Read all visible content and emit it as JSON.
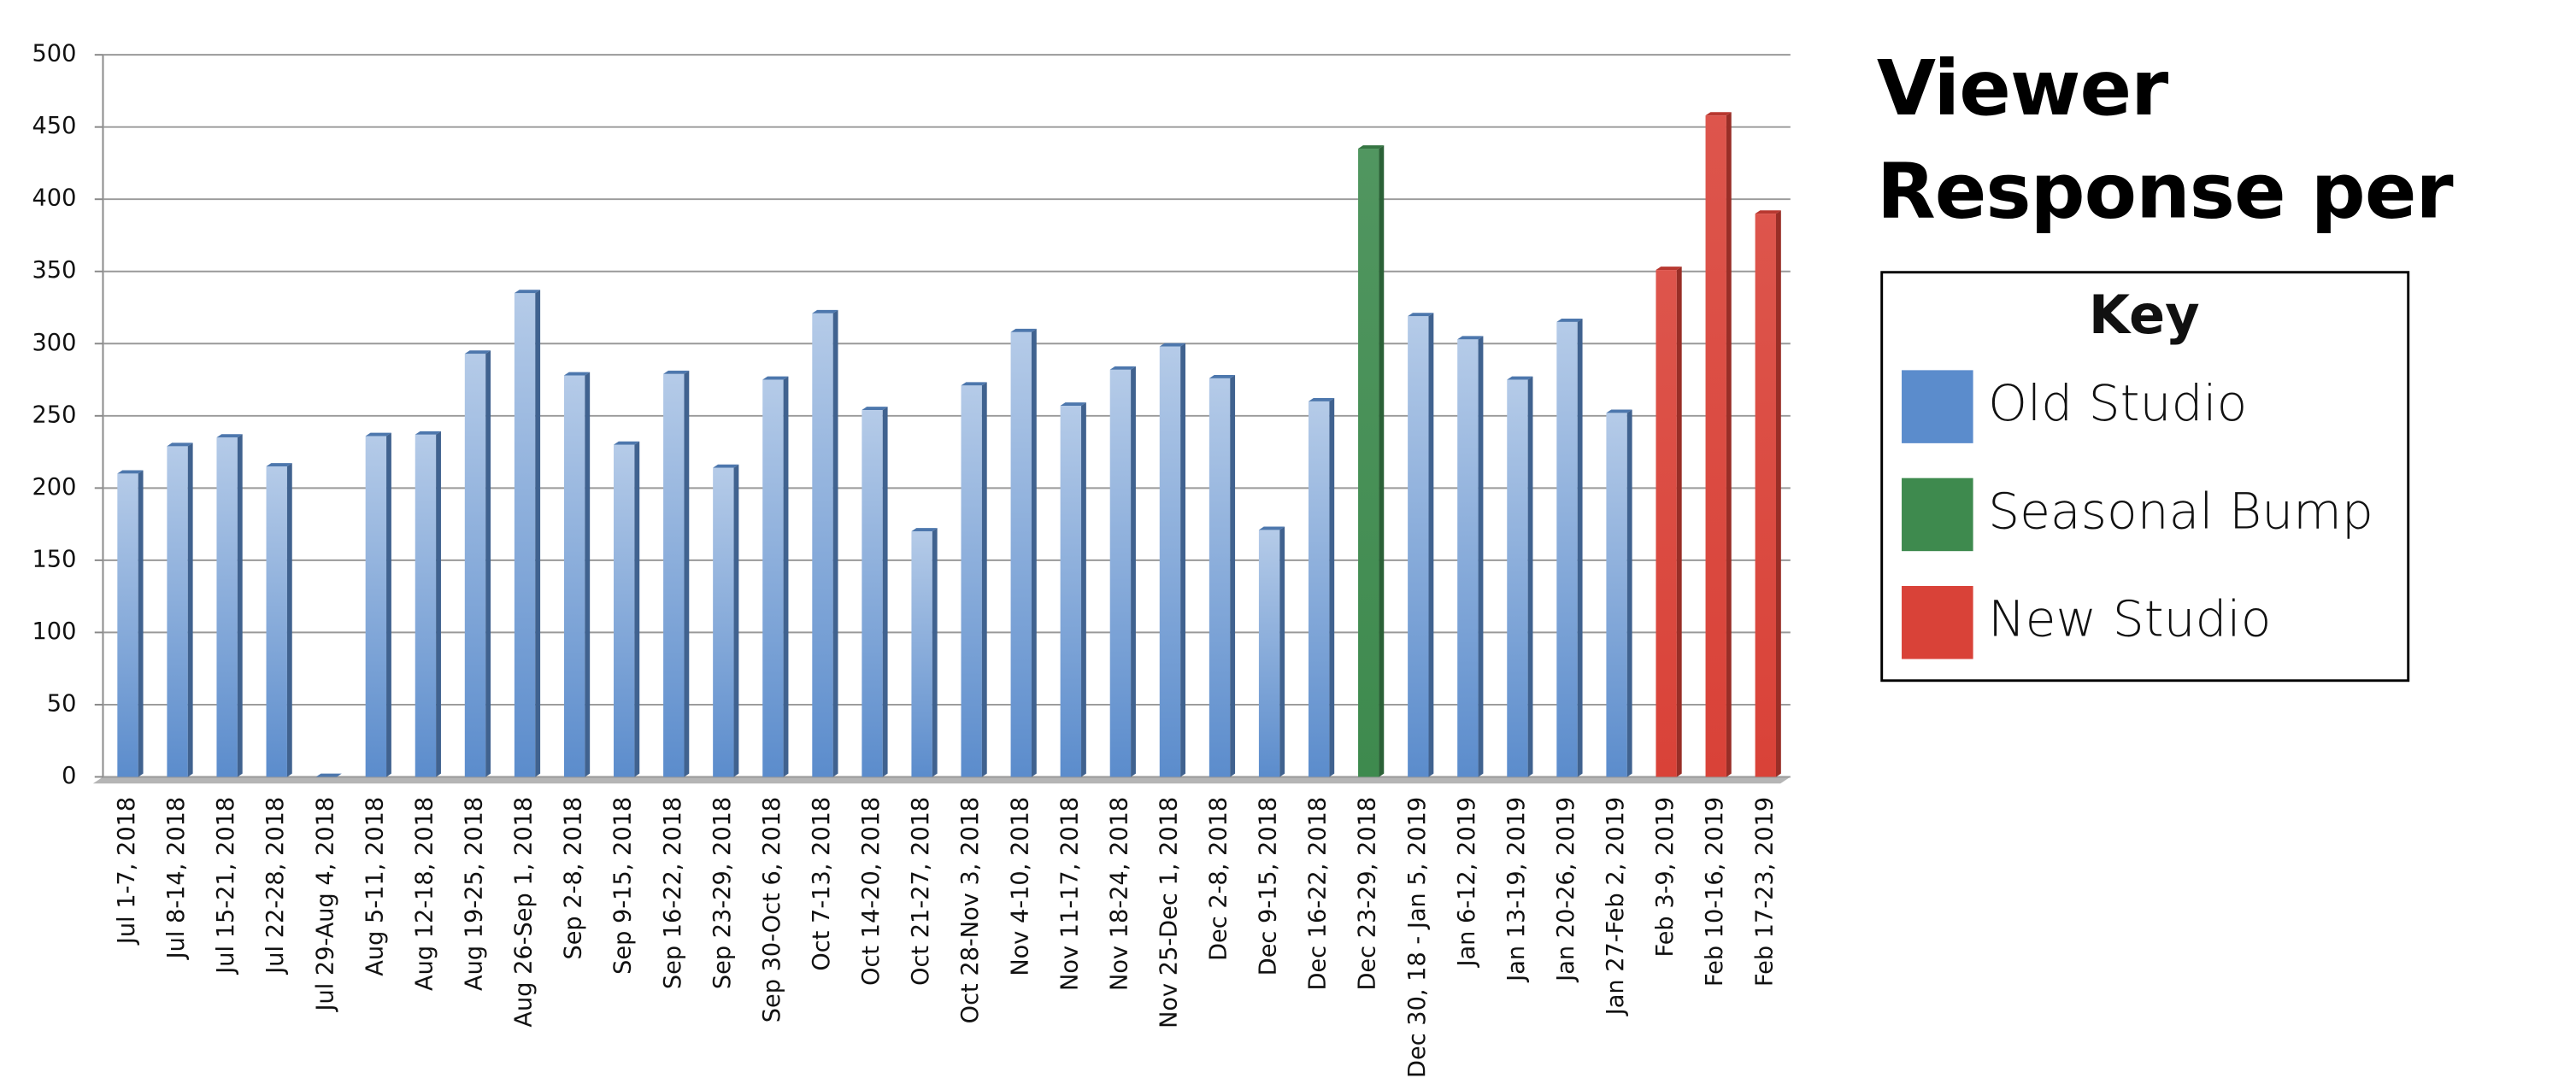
{
  "chart_data": {
    "type": "bar",
    "title": "Viewer Response per Airing",
    "legend_title": "Key",
    "categories": [
      "Jul 1-7, 2018",
      "Jul 8-14, 2018",
      "Jul 15-21, 2018",
      "Jul 22-28, 2018",
      "Jul 29-Aug 4, 2018",
      "Aug 5-11, 2018",
      "Aug 12-18, 2018",
      "Aug 19-25, 2018",
      "Aug 26-Sep 1, 2018",
      "Sep 2-8, 2018",
      "Sep 9-15, 2018",
      "Sep 16-22, 2018",
      "Sep 23-29, 2018",
      "Sep 30-Oct 6, 2018",
      "Oct 7-13, 2018",
      "Oct 14-20, 2018",
      "Oct 21-27, 2018",
      "Oct 28-Nov 3, 2018",
      "Nov 4-10, 2018",
      "Nov 11-17, 2018",
      "Nov 18-24, 2018",
      "Nov 25-Dec 1, 2018",
      "Dec 2-8, 2018",
      "Dec 9-15, 2018",
      "Dec 16-22, 2018",
      "Dec 23-29, 2018",
      "Dec 30, 18 - Jan 5, 2019",
      "Jan 6-12, 2019",
      "Jan 13-19, 2019",
      "Jan 20-26, 2019",
      "Jan 27-Feb 2, 2019",
      "Feb 3-9, 2019",
      "Feb 10-16, 2019",
      "Feb 17-23, 2019"
    ],
    "series": [
      {
        "name": "Old Studio",
        "color": "#5b8ccc",
        "values": [
          210,
          229,
          235,
          215,
          0,
          236,
          237,
          293,
          335,
          278,
          230,
          279,
          214,
          275,
          321,
          254,
          170,
          271,
          308,
          257,
          282,
          298,
          276,
          171,
          260,
          null,
          319,
          303,
          275,
          315,
          252,
          null,
          null,
          null
        ]
      },
      {
        "name": "Seasonal Bump",
        "color": "#3e8a4e",
        "values": [
          null,
          null,
          null,
          null,
          null,
          null,
          null,
          null,
          null,
          null,
          null,
          null,
          null,
          null,
          null,
          null,
          null,
          null,
          null,
          null,
          null,
          null,
          null,
          null,
          null,
          435,
          null,
          null,
          null,
          null,
          null,
          null,
          null,
          null
        ]
      },
      {
        "name": "New Studio",
        "color": "#d94238",
        "values": [
          null,
          null,
          null,
          null,
          null,
          null,
          null,
          null,
          null,
          null,
          null,
          null,
          null,
          null,
          null,
          null,
          null,
          null,
          null,
          null,
          null,
          null,
          null,
          null,
          null,
          null,
          null,
          null,
          null,
          null,
          null,
          351,
          458,
          390
        ]
      }
    ],
    "ylim": [
      0,
      500
    ],
    "yticks": [
      0,
      50,
      100,
      150,
      200,
      250,
      300,
      350,
      400,
      450,
      500
    ],
    "grid": true
  }
}
